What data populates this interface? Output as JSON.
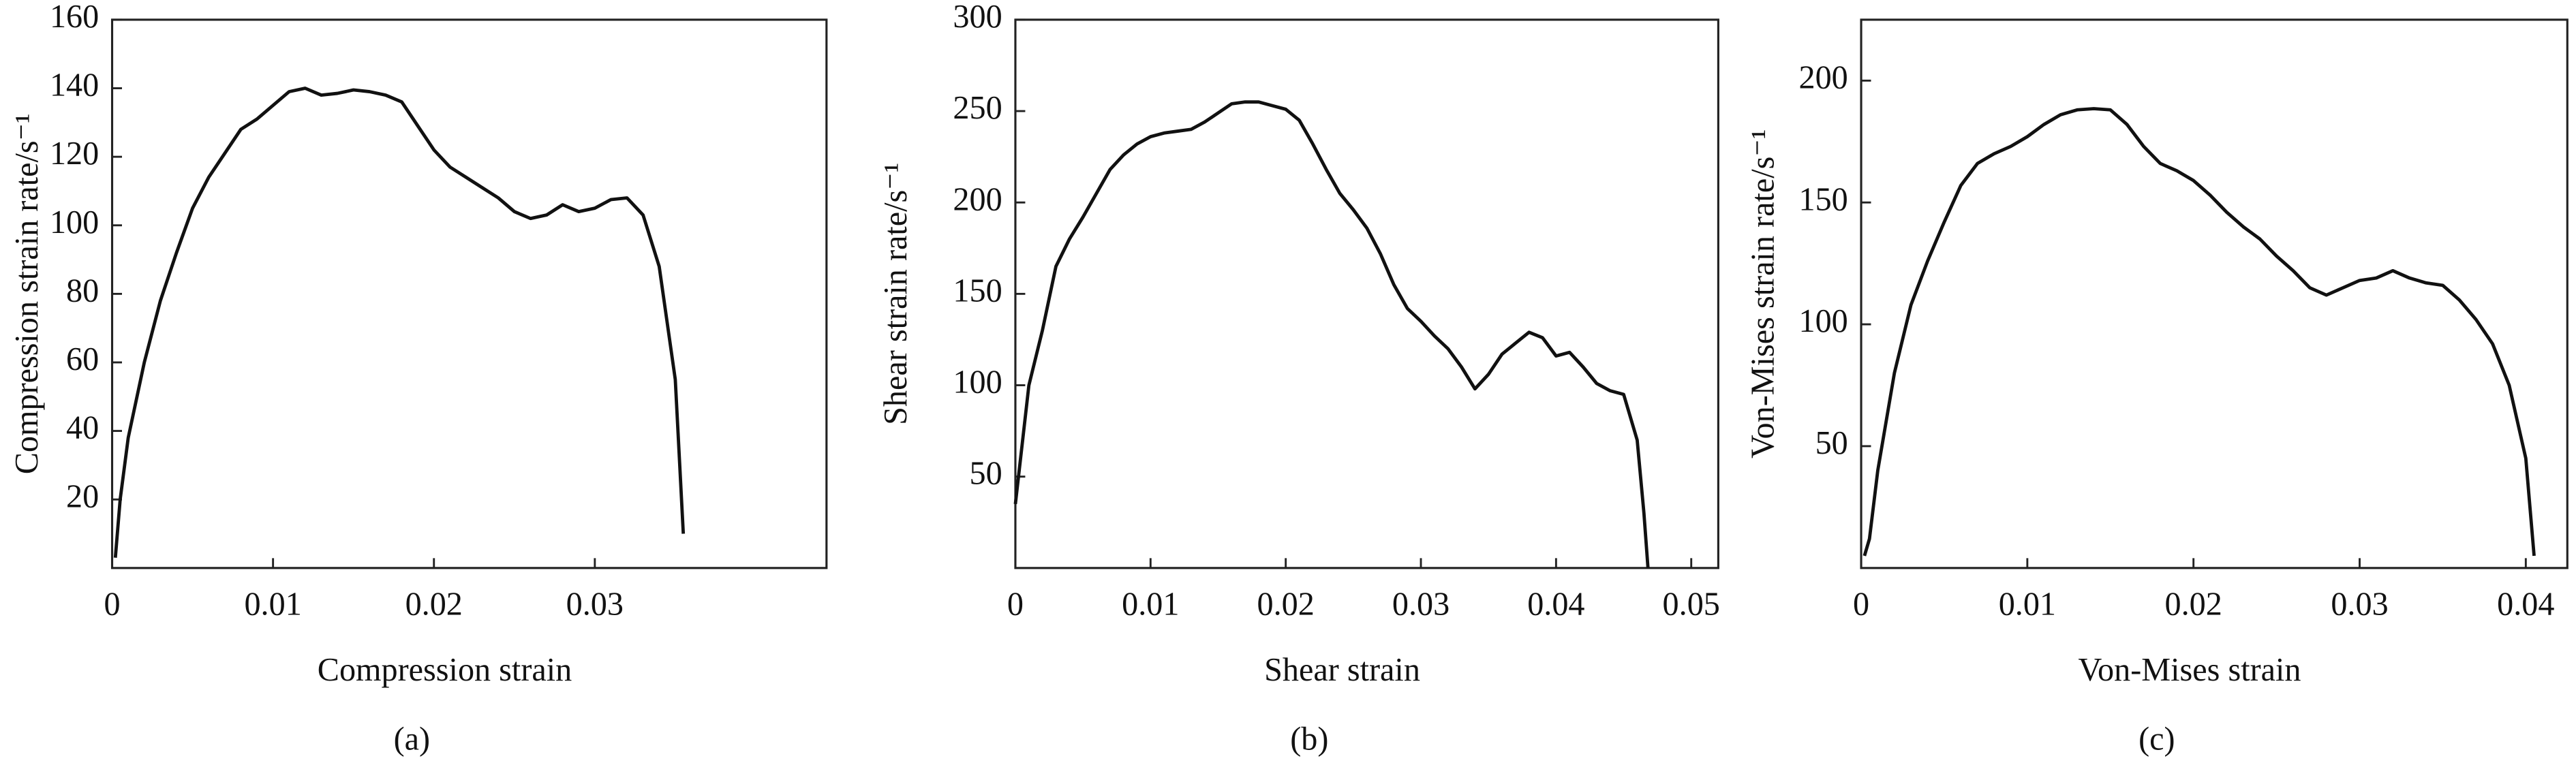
{
  "chart_data": [
    {
      "type": "line",
      "caption": "(a)",
      "xlabel": "Compression strain",
      "ylabel": "Compression strain rate/s⁻¹",
      "xlim": [
        0,
        0.0444
      ],
      "ylim": [
        0,
        160
      ],
      "xticks": [
        0,
        0.01,
        0.02,
        0.03
      ],
      "yticks": [
        20,
        40,
        60,
        80,
        100,
        120,
        140,
        160
      ],
      "color": "#111111",
      "x": [
        0.0002,
        0.0005,
        0.001,
        0.002,
        0.003,
        0.004,
        0.005,
        0.006,
        0.007,
        0.008,
        0.009,
        0.01,
        0.011,
        0.012,
        0.013,
        0.014,
        0.015,
        0.016,
        0.017,
        0.018,
        0.019,
        0.02,
        0.021,
        0.022,
        0.023,
        0.024,
        0.025,
        0.026,
        0.027,
        0.028,
        0.029,
        0.03,
        0.031,
        0.032,
        0.033,
        0.034,
        0.035,
        0.0355
      ],
      "values": [
        3,
        20,
        38,
        60,
        78,
        92,
        105,
        114,
        121,
        128,
        131,
        135,
        139,
        140,
        138,
        138.5,
        139.5,
        139,
        138,
        136,
        129,
        122,
        117,
        114,
        111,
        108,
        104,
        102,
        103,
        106,
        104,
        105,
        107.5,
        108,
        103,
        88,
        55,
        10
      ]
    },
    {
      "type": "line",
      "caption": "(b)",
      "xlabel": "Shear strain",
      "ylabel": "Shear strain rate/s⁻¹",
      "xlim": [
        0,
        0.052
      ],
      "ylim": [
        0,
        300
      ],
      "xticks": [
        0,
        0.01,
        0.02,
        0.03,
        0.04,
        0.05
      ],
      "yticks": [
        50,
        100,
        150,
        200,
        250,
        300
      ],
      "color": "#111111",
      "x": [
        0,
        0.001,
        0.002,
        0.003,
        0.004,
        0.005,
        0.006,
        0.007,
        0.008,
        0.009,
        0.01,
        0.011,
        0.012,
        0.013,
        0.014,
        0.015,
        0.016,
        0.017,
        0.018,
        0.019,
        0.02,
        0.021,
        0.022,
        0.023,
        0.024,
        0.025,
        0.026,
        0.027,
        0.028,
        0.029,
        0.03,
        0.031,
        0.032,
        0.033,
        0.034,
        0.035,
        0.036,
        0.037,
        0.038,
        0.039,
        0.04,
        0.041,
        0.042,
        0.043,
        0.044,
        0.045,
        0.046,
        0.0465,
        0.0468
      ],
      "values": [
        35,
        100,
        130,
        165,
        180,
        192,
        205,
        218,
        226,
        232,
        236,
        238,
        239,
        240,
        244,
        249,
        254,
        255,
        255,
        253,
        251,
        245,
        232,
        218,
        205,
        196,
        186,
        172,
        155,
        142,
        135,
        127,
        120,
        110,
        98,
        106,
        117,
        123,
        129,
        126,
        116,
        118,
        110,
        101,
        97,
        95,
        70,
        30,
        0
      ]
    },
    {
      "type": "line",
      "caption": "(c)",
      "xlabel": "Von-Mises strain",
      "ylabel": "Von-Mises strain rate/s⁻¹",
      "xlim": [
        0,
        0.0425
      ],
      "ylim": [
        0,
        225
      ],
      "xticks": [
        0,
        0.01,
        0.02,
        0.03,
        0.04
      ],
      "yticks": [
        50,
        100,
        150,
        200
      ],
      "color": "#111111",
      "x": [
        0.0002,
        0.0005,
        0.001,
        0.002,
        0.003,
        0.004,
        0.005,
        0.006,
        0.007,
        0.008,
        0.009,
        0.01,
        0.011,
        0.012,
        0.013,
        0.014,
        0.015,
        0.016,
        0.017,
        0.018,
        0.019,
        0.02,
        0.021,
        0.022,
        0.023,
        0.024,
        0.025,
        0.026,
        0.027,
        0.028,
        0.029,
        0.03,
        0.031,
        0.032,
        0.033,
        0.034,
        0.035,
        0.036,
        0.037,
        0.038,
        0.039,
        0.04,
        0.0405
      ],
      "values": [
        5,
        12,
        40,
        80,
        108,
        126,
        142,
        157,
        166,
        170,
        173,
        177,
        182,
        186,
        188,
        188.5,
        188,
        182,
        173,
        166,
        163,
        159,
        153,
        146,
        140,
        135,
        128,
        122,
        115,
        112,
        115,
        118,
        119,
        122,
        119,
        117,
        116,
        110,
        102,
        92,
        75,
        45,
        5
      ]
    }
  ]
}
